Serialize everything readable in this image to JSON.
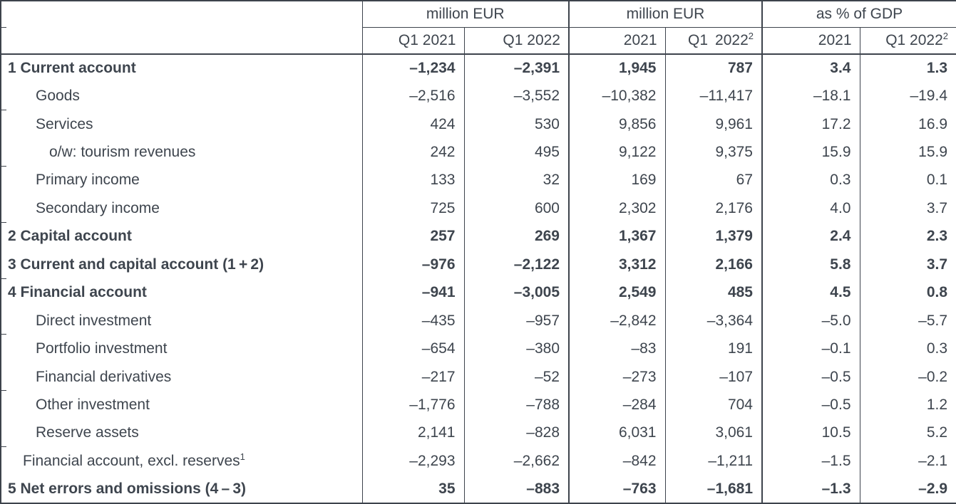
{
  "table": {
    "column_groups": [
      {
        "label": "million EUR",
        "span": 2
      },
      {
        "label": "million EUR",
        "span": 2
      },
      {
        "label": "as % of GDP",
        "span": 2
      }
    ],
    "sub_headers": [
      {
        "text": "Q1 2021",
        "sup": ""
      },
      {
        "text": "Q1 2022",
        "sup": ""
      },
      {
        "text": "2021",
        "sup": ""
      },
      {
        "text": "Q1  2022",
        "sup": "2"
      },
      {
        "text": "2021",
        "sup": ""
      },
      {
        "text": "Q1 2022",
        "sup": "2"
      }
    ],
    "rows": [
      {
        "label": "1 Current account",
        "sup": "",
        "bold": true,
        "indent": 0,
        "values": [
          "–1,234",
          "–2,391",
          "1,945",
          "787",
          "3.4",
          "1.3"
        ]
      },
      {
        "label": "Goods",
        "sup": "",
        "bold": false,
        "indent": 1,
        "values": [
          "–2,516",
          "–3,552",
          "–10,382",
          "–11,417",
          "–18.1",
          "–19.4"
        ]
      },
      {
        "label": "Services",
        "sup": "",
        "bold": false,
        "indent": 1,
        "values": [
          "424",
          "530",
          "9,856",
          "9,961",
          "17.2",
          "16.9"
        ]
      },
      {
        "label": "o/w: tourism revenues",
        "sup": "",
        "bold": false,
        "indent": 2,
        "values": [
          "242",
          "495",
          "9,122",
          "9,375",
          "15.9",
          "15.9"
        ]
      },
      {
        "label": "Primary income",
        "sup": "",
        "bold": false,
        "indent": 1,
        "values": [
          "133",
          "32",
          "169",
          "67",
          "0.3",
          "0.1"
        ]
      },
      {
        "label": "Secondary income",
        "sup": "",
        "bold": false,
        "indent": 1,
        "values": [
          "725",
          "600",
          "2,302",
          "2,176",
          "4.0",
          "3.7"
        ]
      },
      {
        "label": "2 Capital account",
        "sup": "",
        "bold": true,
        "indent": 0,
        "values": [
          "257",
          "269",
          "1,367",
          "1,379",
          "2.4",
          "2.3"
        ]
      },
      {
        "label": "3 Current and capital account (1 + 2)",
        "sup": "",
        "bold": true,
        "indent": 0,
        "values": [
          "–976",
          "–2,122",
          "3,312",
          "2,166",
          "5.8",
          "3.7"
        ]
      },
      {
        "label": "4 Financial account",
        "sup": "",
        "bold": true,
        "indent": 0,
        "values": [
          "–941",
          "–3,005",
          "2,549",
          "485",
          "4.5",
          "0.8"
        ]
      },
      {
        "label": "Direct investment",
        "sup": "",
        "bold": false,
        "indent": 1,
        "values": [
          "–435",
          "–957",
          "–2,842",
          "–3,364",
          "–5.0",
          "–5.7"
        ]
      },
      {
        "label": "Portfolio investment",
        "sup": "",
        "bold": false,
        "indent": 1,
        "values": [
          "–654",
          "–380",
          "–83",
          "191",
          "–0.1",
          "0.3"
        ]
      },
      {
        "label": "Financial derivatives",
        "sup": "",
        "bold": false,
        "indent": 1,
        "values": [
          "–217",
          "–52",
          "–273",
          "–107",
          "–0.5",
          "–0.2"
        ]
      },
      {
        "label": "Other investment",
        "sup": "",
        "bold": false,
        "indent": 1,
        "values": [
          "–1,776",
          "–788",
          "–284",
          "704",
          "–0.5",
          "1.2"
        ]
      },
      {
        "label": "Reserve assets",
        "sup": "",
        "bold": false,
        "indent": 1,
        "values": [
          "2,141",
          "–828",
          "6,031",
          "3,061",
          "10.5",
          "5.2"
        ]
      },
      {
        "label": "Financial account, excl. reserves",
        "sup": "1",
        "bold": false,
        "indent": 3,
        "values": [
          "–2,293",
          "–2,662",
          "–842",
          "–1,211",
          "–1.5",
          "–2.1"
        ]
      },
      {
        "label": "5 Net errors and omissions (4 – 3)",
        "sup": "",
        "bold": true,
        "indent": 0,
        "values": [
          "35",
          "–883",
          "–763",
          "–1,681",
          "–1.3",
          "–2.9"
        ]
      }
    ]
  }
}
